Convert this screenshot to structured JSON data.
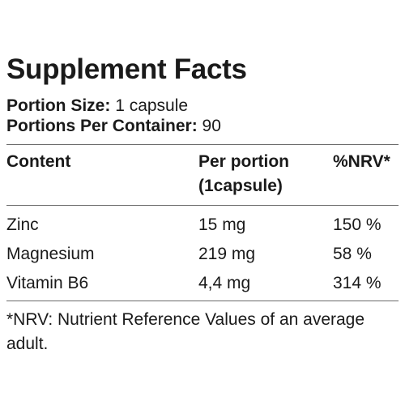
{
  "title": "Supplement Facts",
  "portion_size": {
    "label": "Portion Size:",
    "value": "1 capsule"
  },
  "portions_per_container": {
    "label": "Portions Per Container:",
    "value": "90"
  },
  "table": {
    "headers": {
      "content": "Content",
      "per_portion_line1": "Per portion",
      "per_portion_line2": "(1capsule)",
      "nrv": "%NRV*"
    },
    "rows": [
      {
        "name": "Zinc",
        "amount": "15 mg",
        "nrv": "150 %"
      },
      {
        "name": "Magnesium",
        "amount": "219 mg",
        "nrv": "58 %"
      },
      {
        "name": "Vitamin B6",
        "amount": "4,4 mg",
        "nrv": "314 %"
      }
    ]
  },
  "footnote": "*NRV: Nutrient Reference Values of an average adult."
}
